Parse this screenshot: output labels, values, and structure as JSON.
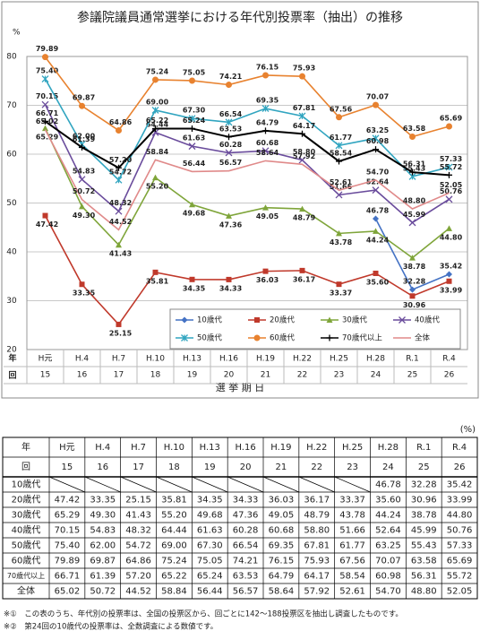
{
  "chart_data": {
    "type": "line",
    "title": "参議院議員通常選挙における年代別投票率（抽出）の推移",
    "y_unit": "%",
    "x_label": "選 挙 期 日",
    "row_labels": [
      "年",
      "回"
    ],
    "categories": [
      "H元",
      "H.4",
      "H.7",
      "H.10",
      "H.13",
      "H.16",
      "H.19",
      "H.22",
      "H.25",
      "H.28",
      "R.1",
      "R.4"
    ],
    "sessions": [
      15,
      16,
      17,
      18,
      19,
      20,
      21,
      22,
      23,
      24,
      25,
      26
    ],
    "ylim": [
      20,
      80
    ],
    "yticks": [
      20,
      30,
      40,
      50,
      60,
      70,
      80
    ],
    "grid": true,
    "legend": "lower right",
    "series": [
      {
        "name": "10歳代",
        "color": "#4472c4",
        "marker": "diamond",
        "values": [
          null,
          null,
          null,
          null,
          null,
          null,
          null,
          null,
          null,
          46.78,
          32.28,
          35.42
        ],
        "value_labels": [
          null,
          null,
          null,
          null,
          null,
          null,
          null,
          null,
          null,
          "46.78",
          "32.28",
          "35.42"
        ]
      },
      {
        "name": "20歳代",
        "color": "#c0392b",
        "marker": "square",
        "values": [
          47.42,
          33.35,
          25.15,
          35.81,
          34.35,
          34.33,
          36.03,
          36.17,
          33.37,
          35.6,
          30.96,
          33.99
        ],
        "value_labels": [
          "47.42",
          "33.35",
          "25.15",
          "35.81",
          "34.35",
          "34.33",
          "36.03",
          "36.17",
          "33.37",
          "35.60",
          "30.96",
          "33.99"
        ]
      },
      {
        "name": "30歳代",
        "color": "#7fa53a",
        "marker": "triangle",
        "values": [
          65.29,
          49.3,
          41.43,
          55.2,
          49.68,
          47.36,
          49.05,
          48.79,
          43.78,
          44.24,
          38.78,
          44.8
        ],
        "value_labels": [
          "65.29",
          "49.30",
          "41.43",
          "55.20",
          "49.68",
          "47.36",
          "49.05",
          "48.79",
          "43.78",
          "44.24",
          "38.78",
          "44.80"
        ]
      },
      {
        "name": "40歳代",
        "color": "#6a4c9c",
        "marker": "x",
        "values": [
          70.15,
          54.83,
          48.32,
          64.44,
          61.63,
          60.28,
          60.68,
          58.8,
          51.66,
          52.64,
          45.99,
          50.76
        ],
        "value_labels": [
          "70.15",
          "54.83",
          "48.32",
          "64.44",
          "61.63",
          "60.28",
          "60.68",
          "58.80",
          "51.66",
          "52.64",
          "45.99",
          "50.76"
        ]
      },
      {
        "name": "50歳代",
        "color": "#31a5c0",
        "marker": "star",
        "values": [
          75.4,
          62,
          54.72,
          69,
          67.3,
          66.54,
          69.35,
          67.81,
          61.77,
          63.25,
          55.43,
          57.33
        ],
        "value_labels": [
          "75.40",
          "62.00",
          "54.72",
          "69.00",
          "67.30",
          "66.54",
          "69.35",
          "67.81",
          "61.77",
          "63.25",
          "55.43",
          "57.33"
        ]
      },
      {
        "name": "60歳代",
        "color": "#e8822f",
        "marker": "circle",
        "values": [
          79.89,
          69.87,
          64.86,
          75.24,
          75.05,
          74.21,
          76.15,
          75.93,
          67.56,
          70.07,
          63.58,
          65.69
        ],
        "value_labels": [
          "79.89",
          "69.87",
          "64.86",
          "75.24",
          "75.05",
          "74.21",
          "76.15",
          "75.93",
          "67.56",
          "70.07",
          "63.58",
          "65.69"
        ]
      },
      {
        "name": "70歳代以上",
        "color": "#000000",
        "marker": "plus",
        "values": [
          66.71,
          61.39,
          57.2,
          65.22,
          65.24,
          63.53,
          64.79,
          64.17,
          58.54,
          60.98,
          56.31,
          55.72
        ],
        "value_labels": [
          "66.71",
          "61.39",
          "57.20",
          "65.22",
          "65.24",
          "63.53",
          "64.79",
          "64.17",
          "58.54",
          "60.98",
          "56.31",
          "55.72"
        ]
      },
      {
        "name": "全体",
        "color": "#e08a8a",
        "marker": "none",
        "values": [
          65.02,
          50.72,
          44.52,
          58.84,
          56.44,
          56.57,
          58.64,
          57.92,
          52.61,
          54.7,
          48.8,
          52.05
        ],
        "value_labels": [
          "65.02",
          "50.72",
          "44.52",
          "58.84",
          "56.44",
          "56.57",
          "58.64",
          "57.92",
          "52.61",
          "54.70",
          "48.80",
          "52.05"
        ]
      }
    ]
  },
  "table": {
    "unit": "(%)"
  },
  "notes": [
    "※①　この表のうち、年代別の投票率は、全国の投票区から、回ごとに142～188投票区を抽出し調査したものです。",
    "※②　第24回の10歳代の投票率は、全数調査による数値です。"
  ]
}
